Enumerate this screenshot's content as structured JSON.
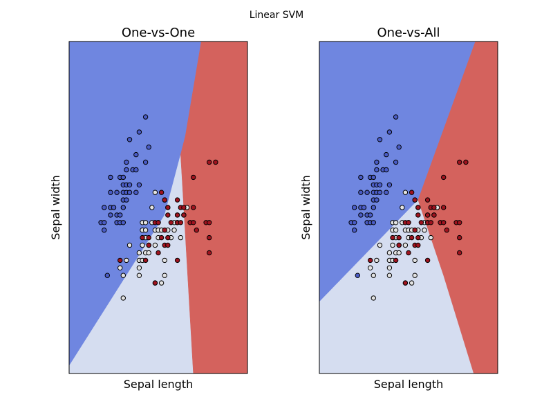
{
  "figure": {
    "suptitle": "Linear SVM"
  },
  "colors": {
    "class_0": "#6f86e0",
    "class_1": "#d5ddf0",
    "class_2": "#d4625d",
    "point_0": "#4a5cc6",
    "point_1": "#e3e3e3",
    "point_2": "#a0131f",
    "edge": "#000000"
  },
  "chart_data": [
    {
      "type": "scatter",
      "title": "One-vs-One",
      "xlabel": "Sepal length",
      "ylabel": "Sepal width",
      "xlim": [
        3.3,
        8.9
      ],
      "ylim": [
        1.0,
        5.4
      ],
      "xticks": [],
      "yticks": [],
      "grid": false,
      "regions": [
        {
          "class": 0,
          "polygon": [
            [
              3.3,
              5.4
            ],
            [
              7.45,
              5.4
            ],
            [
              6.95,
              4.15
            ],
            [
              6.8,
              3.9
            ],
            [
              6.3,
              3.1
            ],
            [
              3.3,
              1.1
            ]
          ]
        },
        {
          "class": 1,
          "polygon": [
            [
              3.3,
              1.1
            ],
            [
              6.3,
              3.1
            ],
            [
              6.8,
              3.9
            ],
            [
              6.85,
              3.55
            ],
            [
              7.2,
              1.0
            ],
            [
              3.3,
              1.0
            ]
          ]
        },
        {
          "class": 2,
          "polygon": [
            [
              7.45,
              5.4
            ],
            [
              8.9,
              5.4
            ],
            [
              8.9,
              1.0
            ],
            [
              7.2,
              1.0
            ],
            [
              6.85,
              3.55
            ],
            [
              6.8,
              3.9
            ],
            [
              6.95,
              4.15
            ]
          ]
        }
      ]
    },
    {
      "type": "scatter",
      "title": "One-vs-All",
      "xlabel": "Sepal length",
      "ylabel": "Sepal width",
      "xlim": [
        3.3,
        8.9
      ],
      "ylim": [
        1.0,
        5.4
      ],
      "xticks": [],
      "yticks": [],
      "grid": false,
      "regions": [
        {
          "class": 0,
          "polygon": [
            [
              3.3,
              5.4
            ],
            [
              8.2,
              5.4
            ],
            [
              6.4,
              3.3
            ],
            [
              3.3,
              1.95
            ]
          ]
        },
        {
          "class": 1,
          "polygon": [
            [
              3.3,
              1.95
            ],
            [
              6.4,
              3.3
            ],
            [
              7.2,
              2.3
            ],
            [
              8.15,
              1.0
            ],
            [
              3.3,
              1.0
            ]
          ]
        },
        {
          "class": 2,
          "polygon": [
            [
              8.2,
              5.4
            ],
            [
              8.9,
              5.4
            ],
            [
              8.9,
              1.0
            ],
            [
              8.15,
              1.0
            ],
            [
              7.2,
              2.3
            ],
            [
              6.4,
              3.3
            ]
          ]
        }
      ]
    }
  ],
  "points": {
    "class_0": [
      [
        4.3,
        3.0
      ],
      [
        4.4,
        2.9
      ],
      [
        4.4,
        3.0
      ],
      [
        4.4,
        3.2
      ],
      [
        4.5,
        2.3
      ],
      [
        4.6,
        3.1
      ],
      [
        4.6,
        3.2
      ],
      [
        4.6,
        3.4
      ],
      [
        4.6,
        3.6
      ],
      [
        4.7,
        3.2
      ],
      [
        4.8,
        3.0
      ],
      [
        4.8,
        3.1
      ],
      [
        4.8,
        3.4
      ],
      [
        4.9,
        3.0
      ],
      [
        4.9,
        3.1
      ],
      [
        4.9,
        3.6
      ],
      [
        5.0,
        3.0
      ],
      [
        5.0,
        3.2
      ],
      [
        5.0,
        3.3
      ],
      [
        5.0,
        3.4
      ],
      [
        5.0,
        3.5
      ],
      [
        5.0,
        3.6
      ],
      [
        5.1,
        3.3
      ],
      [
        5.1,
        3.4
      ],
      [
        5.1,
        3.5
      ],
      [
        5.1,
        3.7
      ],
      [
        5.1,
        3.8
      ],
      [
        5.2,
        3.4
      ],
      [
        5.2,
        3.5
      ],
      [
        5.2,
        4.1
      ],
      [
        5.3,
        3.7
      ],
      [
        5.4,
        3.4
      ],
      [
        5.4,
        3.7
      ],
      [
        5.4,
        3.9
      ],
      [
        5.5,
        3.5
      ],
      [
        5.5,
        4.2
      ],
      [
        5.7,
        3.8
      ],
      [
        5.7,
        4.4
      ],
      [
        5.8,
        4.0
      ]
    ],
    "class_1": [
      [
        4.9,
        2.4
      ],
      [
        5.0,
        2.0
      ],
      [
        5.0,
        2.3
      ],
      [
        5.1,
        2.5
      ],
      [
        5.2,
        2.7
      ],
      [
        5.5,
        2.3
      ],
      [
        5.5,
        2.4
      ],
      [
        5.5,
        2.5
      ],
      [
        5.5,
        2.6
      ],
      [
        5.6,
        2.5
      ],
      [
        5.6,
        2.7
      ],
      [
        5.6,
        2.9
      ],
      [
        5.6,
        3.0
      ],
      [
        5.7,
        2.6
      ],
      [
        5.7,
        2.8
      ],
      [
        5.7,
        2.9
      ],
      [
        5.7,
        3.0
      ],
      [
        5.8,
        2.6
      ],
      [
        5.8,
        2.7
      ],
      [
        5.9,
        3.0
      ],
      [
        5.9,
        3.2
      ],
      [
        6.0,
        2.2
      ],
      [
        6.0,
        2.7
      ],
      [
        6.0,
        2.9
      ],
      [
        6.0,
        3.4
      ],
      [
        6.1,
        2.8
      ],
      [
        6.1,
        2.9
      ],
      [
        6.1,
        3.0
      ],
      [
        6.2,
        2.2
      ],
      [
        6.2,
        2.9
      ],
      [
        6.3,
        2.3
      ],
      [
        6.3,
        2.5
      ],
      [
        6.3,
        3.3
      ],
      [
        6.4,
        2.9
      ],
      [
        6.4,
        3.2
      ],
      [
        6.5,
        2.8
      ],
      [
        6.6,
        2.9
      ],
      [
        6.6,
        3.0
      ],
      [
        6.7,
        3.0
      ],
      [
        6.7,
        3.1
      ],
      [
        6.8,
        2.8
      ],
      [
        6.9,
        3.1
      ],
      [
        7.0,
        3.2
      ]
    ],
    "class_2": [
      [
        4.9,
        2.5
      ],
      [
        5.6,
        2.8
      ],
      [
        5.7,
        2.5
      ],
      [
        5.8,
        2.7
      ],
      [
        5.8,
        2.8
      ],
      [
        6.0,
        2.2
      ],
      [
        6.0,
        3.0
      ],
      [
        6.1,
        2.6
      ],
      [
        6.1,
        3.0
      ],
      [
        6.2,
        2.8
      ],
      [
        6.2,
        3.4
      ],
      [
        6.3,
        2.7
      ],
      [
        6.3,
        2.9
      ],
      [
        6.3,
        3.3
      ],
      [
        6.4,
        2.7
      ],
      [
        6.4,
        2.8
      ],
      [
        6.4,
        3.1
      ],
      [
        6.4,
        3.2
      ],
      [
        6.5,
        3.0
      ],
      [
        6.7,
        2.5
      ],
      [
        6.7,
        3.0
      ],
      [
        6.7,
        3.1
      ],
      [
        6.7,
        3.3
      ],
      [
        6.8,
        3.0
      ],
      [
        6.8,
        3.2
      ],
      [
        6.9,
        3.1
      ],
      [
        6.9,
        3.2
      ],
      [
        7.1,
        3.0
      ],
      [
        7.2,
        3.0
      ],
      [
        7.2,
        3.2
      ],
      [
        7.2,
        3.6
      ],
      [
        7.3,
        2.9
      ],
      [
        7.6,
        3.0
      ],
      [
        7.7,
        2.6
      ],
      [
        7.7,
        2.8
      ],
      [
        7.7,
        3.0
      ],
      [
        7.7,
        3.8
      ],
      [
        7.9,
        3.8
      ]
    ]
  }
}
